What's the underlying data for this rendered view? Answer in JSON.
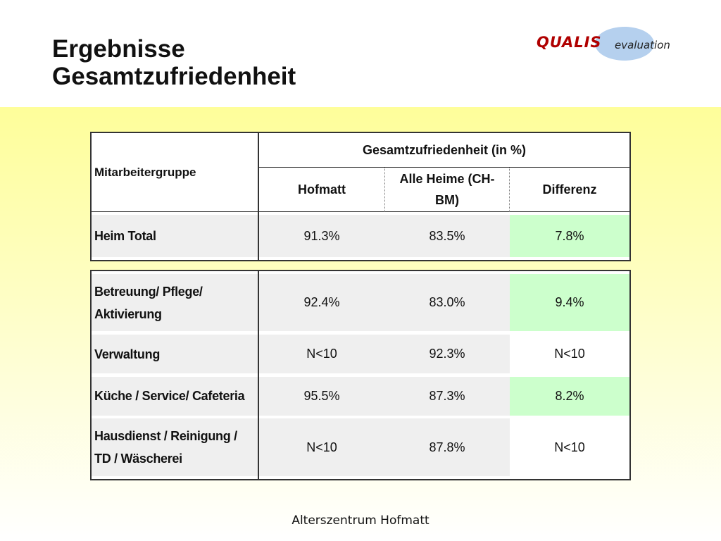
{
  "title": {
    "line1": "Ergebnisse",
    "line2": "Gesamtzufriedenheit"
  },
  "logo": {
    "brand": "QUALIS",
    "tagline": "evaluation"
  },
  "table": {
    "label_header": "Mitarbeitergruppe",
    "group_header": "Gesamtzufriedenheit (in %)",
    "col_hofmatt": "Hofmatt",
    "col_alle_line1": "Alle Heime (CH-",
    "col_alle_line2": "BM)",
    "col_diff": "Differenz",
    "total": {
      "label": "Heim Total",
      "hofmatt": "91.3%",
      "alle": "83.5%",
      "diff": "7.8%"
    },
    "rows": [
      {
        "label_line1": "Betreuung/ Pflege/",
        "label_line2": "Aktivierung",
        "hofmatt": "92.4%",
        "alle": "83.0%",
        "diff": "9.4%"
      },
      {
        "label_line1": "Verwaltung",
        "label_line2": "",
        "hofmatt": "N<10",
        "alle": "92.3%",
        "diff": "N<10"
      },
      {
        "label_line1": "Küche / Service/ Cafeteria",
        "label_line2": "",
        "hofmatt": "95.5%",
        "alle": "87.3%",
        "diff": "8.2%"
      },
      {
        "label_line1": "Hausdienst / Reinigung /",
        "label_line2": "TD / Wäscherei",
        "hofmatt": "N<10",
        "alle": "87.8%",
        "diff": "N<10"
      }
    ]
  },
  "footer": {
    "text": "Alterszentrum Hofmatt"
  },
  "colors": {
    "positive_diff": "#ccffcc",
    "logo_brand": "#b00000",
    "logo_ellipse": "#b5d0ee",
    "background_top": "#fefe9a"
  }
}
